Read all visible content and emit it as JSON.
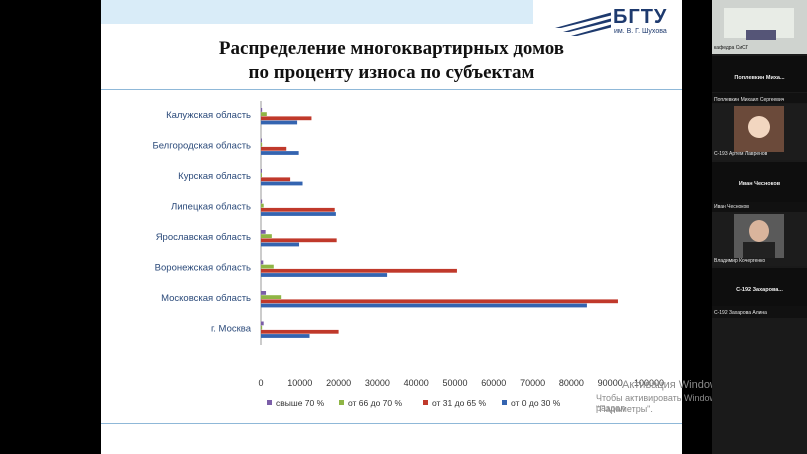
{
  "logo": {
    "name": "БГТУ",
    "subtitle": "им. В. Г. Шухова"
  },
  "slide": {
    "title_line1": "Распределение многоквартирных домов",
    "title_line2": "по проценту износа по субъектам"
  },
  "chart_data": {
    "type": "bar",
    "orientation": "horizontal",
    "categories": [
      "Калужская область",
      "Белгородская область",
      "Курская область",
      "Липецкая область",
      "Ярославская область",
      "Воронежская область",
      "Московская область",
      "г. Москва"
    ],
    "series": [
      {
        "name": "свыше 70 %",
        "color": "#7b5ea8",
        "values": [
          300,
          100,
          100,
          300,
          1200,
          600,
          1300,
          700
        ]
      },
      {
        "name": "от 66 до 70 %",
        "color": "#8fb545",
        "values": [
          1500,
          300,
          200,
          700,
          2800,
          3300,
          5200,
          300
        ]
      },
      {
        "name": "от 31 до 65 %",
        "color": "#c0392b",
        "values": [
          13000,
          6500,
          7500,
          19000,
          19500,
          50500,
          92000,
          20000
        ]
      },
      {
        "name": "от 0 до 30 %",
        "color": "#3464b0",
        "values": [
          9300,
          9700,
          10700,
          19300,
          9800,
          32500,
          84000,
          12500
        ]
      }
    ],
    "xlim": [
      0,
      100000
    ],
    "xticks": [
      "0",
      "10000",
      "20000",
      "30000",
      "40000",
      "50000",
      "60000",
      "70000",
      "80000",
      "90000",
      "100000"
    ],
    "grid": false,
    "legend_position": "bottom"
  },
  "watermark": {
    "line1": "Активация Windows",
    "line2": "Чтобы активировать Windows, перейдите в раздел",
    "line3": "\"Параметры\"."
  },
  "participants": [
    {
      "name": "кафедра СиСГ",
      "type": "video"
    },
    {
      "name": "Поплевкин Миха...",
      "type": "title"
    },
    {
      "name": "Поплевкин Михаил Сергеевич",
      "type": "label"
    },
    {
      "name": "С-193 Артем Лавренов",
      "type": "video"
    },
    {
      "name": "Иван Чесноков",
      "type": "title"
    },
    {
      "name": "Иван Чесноков",
      "type": "label"
    },
    {
      "name": "Владимир Кочергенко",
      "type": "video"
    },
    {
      "name": "С-192 Захарова...",
      "type": "title"
    },
    {
      "name": "С-192 Захарова Алина",
      "type": "label"
    }
  ]
}
